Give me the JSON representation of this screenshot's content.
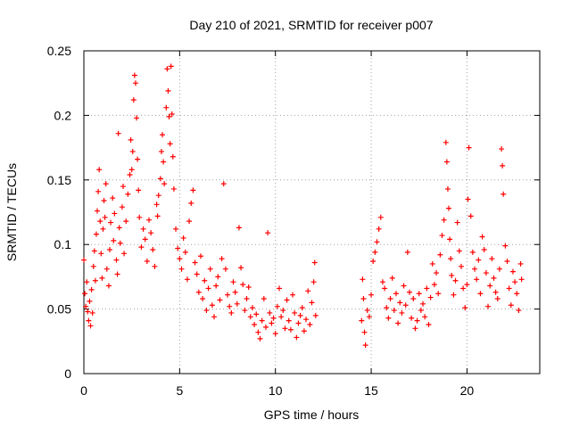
{
  "chart_data": {
    "type": "scatter",
    "title": "Day 210 of 2021, SRMTID for receiver p007",
    "xlabel": "GPS time / hours",
    "ylabel": "SRMTID / TECUs",
    "xlim": [
      0,
      23.8
    ],
    "ylim": [
      0,
      0.25
    ],
    "x_ticks": [
      0,
      5,
      10,
      15,
      20
    ],
    "x_tick_labels": [
      "0",
      "5",
      "10",
      "15",
      "20"
    ],
    "y_ticks": [
      0,
      0.05,
      0.1,
      0.15,
      0.2,
      0.25
    ],
    "y_tick_labels": [
      "0",
      "0.05",
      "0.1",
      "0.15",
      "0.2",
      "0.25"
    ],
    "grid": true,
    "marker": "plus",
    "color": "#ff0000",
    "series": [
      {
        "name": "SRMTID",
        "points": [
          [
            0.0,
            0.088
          ],
          [
            0.05,
            0.062
          ],
          [
            0.1,
            0.052
          ],
          [
            0.15,
            0.071
          ],
          [
            0.2,
            0.048
          ],
          [
            0.25,
            0.041
          ],
          [
            0.3,
            0.056
          ],
          [
            0.35,
            0.037
          ],
          [
            0.4,
            0.065
          ],
          [
            0.45,
            0.047
          ],
          [
            0.5,
            0.083
          ],
          [
            0.55,
            0.095
          ],
          [
            0.6,
            0.072
          ],
          [
            0.65,
            0.108
          ],
          [
            0.7,
            0.126
          ],
          [
            0.75,
            0.141
          ],
          [
            0.8,
            0.158
          ],
          [
            0.85,
            0.118
          ],
          [
            0.9,
            0.093
          ],
          [
            0.95,
            0.074
          ],
          [
            1.0,
            0.112
          ],
          [
            1.05,
            0.134
          ],
          [
            1.1,
            0.121
          ],
          [
            1.15,
            0.147
          ],
          [
            1.2,
            0.081
          ],
          [
            1.3,
            0.068
          ],
          [
            1.35,
            0.096
          ],
          [
            1.4,
            0.117
          ],
          [
            1.5,
            0.136
          ],
          [
            1.55,
            0.103
          ],
          [
            1.6,
            0.124
          ],
          [
            1.7,
            0.088
          ],
          [
            1.75,
            0.077
          ],
          [
            1.8,
            0.186
          ],
          [
            1.85,
            0.113
          ],
          [
            1.9,
            0.101
          ],
          [
            2.0,
            0.129
          ],
          [
            2.05,
            0.145
          ],
          [
            2.1,
            0.093
          ],
          [
            2.2,
            0.118
          ],
          [
            2.3,
            0.139
          ],
          [
            2.4,
            0.154
          ],
          [
            2.45,
            0.181
          ],
          [
            2.5,
            0.158
          ],
          [
            2.55,
            0.172
          ],
          [
            2.6,
            0.212
          ],
          [
            2.65,
            0.231
          ],
          [
            2.7,
            0.225
          ],
          [
            2.75,
            0.198
          ],
          [
            2.8,
            0.166
          ],
          [
            2.85,
            0.142
          ],
          [
            2.9,
            0.121
          ],
          [
            3.0,
            0.098
          ],
          [
            3.1,
            0.112
          ],
          [
            3.2,
            0.104
          ],
          [
            3.3,
            0.087
          ],
          [
            3.4,
            0.119
          ],
          [
            3.5,
            0.109
          ],
          [
            3.6,
            0.096
          ],
          [
            3.7,
            0.083
          ],
          [
            3.8,
            0.131
          ],
          [
            3.85,
            0.122
          ],
          [
            3.9,
            0.138
          ],
          [
            4.0,
            0.151
          ],
          [
            4.05,
            0.172
          ],
          [
            4.1,
            0.185
          ],
          [
            4.15,
            0.164
          ],
          [
            4.2,
            0.147
          ],
          [
            4.3,
            0.206
          ],
          [
            4.35,
            0.236
          ],
          [
            4.4,
            0.219
          ],
          [
            4.45,
            0.199
          ],
          [
            4.5,
            0.178
          ],
          [
            4.55,
            0.238
          ],
          [
            4.6,
            0.201
          ],
          [
            4.65,
            0.168
          ],
          [
            4.7,
            0.143
          ],
          [
            4.8,
            0.112
          ],
          [
            4.9,
            0.097
          ],
          [
            5.0,
            0.089
          ],
          [
            5.1,
            0.081
          ],
          [
            5.2,
            0.105
          ],
          [
            5.3,
            0.094
          ],
          [
            5.4,
            0.073
          ],
          [
            5.5,
            0.118
          ],
          [
            5.6,
            0.132
          ],
          [
            5.7,
            0.142
          ],
          [
            5.8,
            0.086
          ],
          [
            5.9,
            0.077
          ],
          [
            6.0,
            0.063
          ],
          [
            6.1,
            0.091
          ],
          [
            6.2,
            0.058
          ],
          [
            6.3,
            0.072
          ],
          [
            6.4,
            0.049
          ],
          [
            6.5,
            0.066
          ],
          [
            6.6,
            0.081
          ],
          [
            6.7,
            0.053
          ],
          [
            6.8,
            0.044
          ],
          [
            6.9,
            0.068
          ],
          [
            7.0,
            0.075
          ],
          [
            7.1,
            0.057
          ],
          [
            7.2,
            0.089
          ],
          [
            7.3,
            0.147
          ],
          [
            7.4,
            0.081
          ],
          [
            7.5,
            0.061
          ],
          [
            7.6,
            0.052
          ],
          [
            7.7,
            0.047
          ],
          [
            7.8,
            0.071
          ],
          [
            7.9,
            0.063
          ],
          [
            8.0,
            0.054
          ],
          [
            8.1,
            0.113
          ],
          [
            8.2,
            0.082
          ],
          [
            8.3,
            0.069
          ],
          [
            8.4,
            0.049
          ],
          [
            8.5,
            0.058
          ],
          [
            8.6,
            0.067
          ],
          [
            8.7,
            0.044
          ],
          [
            8.8,
            0.051
          ],
          [
            8.9,
            0.038
          ],
          [
            9.0,
            0.046
          ],
          [
            9.1,
            0.032
          ],
          [
            9.2,
            0.027
          ],
          [
            9.3,
            0.041
          ],
          [
            9.4,
            0.058
          ],
          [
            9.5,
            0.036
          ],
          [
            9.6,
            0.109
          ],
          [
            9.7,
            0.047
          ],
          [
            9.8,
            0.039
          ],
          [
            9.9,
            0.043
          ],
          [
            10.0,
            0.031
          ],
          [
            10.1,
            0.052
          ],
          [
            10.2,
            0.066
          ],
          [
            10.3,
            0.044
          ],
          [
            10.4,
            0.049
          ],
          [
            10.5,
            0.035
          ],
          [
            10.6,
            0.057
          ],
          [
            10.7,
            0.041
          ],
          [
            10.8,
            0.034
          ],
          [
            10.9,
            0.061
          ],
          [
            11.0,
            0.047
          ],
          [
            11.1,
            0.028
          ],
          [
            11.2,
            0.039
          ],
          [
            11.3,
            0.045
          ],
          [
            11.4,
            0.051
          ],
          [
            11.5,
            0.033
          ],
          [
            11.6,
            0.042
          ],
          [
            11.7,
            0.064
          ],
          [
            11.8,
            0.038
          ],
          [
            11.9,
            0.055
          ],
          [
            12.0,
            0.071
          ],
          [
            12.05,
            0.086
          ],
          [
            12.1,
            0.045
          ],
          [
            14.5,
            0.041
          ],
          [
            14.55,
            0.073
          ],
          [
            14.6,
            0.058
          ],
          [
            14.65,
            0.032
          ],
          [
            14.7,
            0.022
          ],
          [
            14.8,
            0.049
          ],
          [
            14.9,
            0.044
          ],
          [
            15.0,
            0.061
          ],
          [
            15.1,
            0.087
          ],
          [
            15.2,
            0.094
          ],
          [
            15.3,
            0.102
          ],
          [
            15.4,
            0.112
          ],
          [
            15.5,
            0.121
          ],
          [
            15.6,
            0.071
          ],
          [
            15.7,
            0.066
          ],
          [
            15.8,
            0.051
          ],
          [
            15.9,
            0.043
          ],
          [
            16.0,
            0.058
          ],
          [
            16.1,
            0.074
          ],
          [
            16.2,
            0.049
          ],
          [
            16.3,
            0.062
          ],
          [
            16.4,
            0.039
          ],
          [
            16.5,
            0.055
          ],
          [
            16.6,
            0.047
          ],
          [
            16.7,
            0.068
          ],
          [
            16.8,
            0.053
          ],
          [
            16.9,
            0.094
          ],
          [
            17.0,
            0.063
          ],
          [
            17.1,
            0.043
          ],
          [
            17.2,
            0.058
          ],
          [
            17.3,
            0.035
          ],
          [
            17.4,
            0.041
          ],
          [
            17.5,
            0.062
          ],
          [
            17.6,
            0.049
          ],
          [
            17.7,
            0.054
          ],
          [
            17.8,
            0.044
          ],
          [
            17.9,
            0.066
          ],
          [
            18.0,
            0.038
          ],
          [
            18.1,
            0.059
          ],
          [
            18.2,
            0.085
          ],
          [
            18.3,
            0.069
          ],
          [
            18.4,
            0.078
          ],
          [
            18.5,
            0.062
          ],
          [
            18.6,
            0.092
          ],
          [
            18.7,
            0.107
          ],
          [
            18.8,
            0.119
          ],
          [
            18.9,
            0.179
          ],
          [
            18.95,
            0.164
          ],
          [
            19.0,
            0.143
          ],
          [
            19.05,
            0.128
          ],
          [
            19.1,
            0.104
          ],
          [
            19.15,
            0.089
          ],
          [
            19.2,
            0.076
          ],
          [
            19.3,
            0.061
          ],
          [
            19.4,
            0.072
          ],
          [
            19.5,
            0.117
          ],
          [
            19.6,
            0.095
          ],
          [
            19.7,
            0.083
          ],
          [
            19.8,
            0.066
          ],
          [
            19.9,
            0.051
          ],
          [
            20.0,
            0.069
          ],
          [
            20.05,
            0.135
          ],
          [
            20.1,
            0.175
          ],
          [
            20.2,
            0.122
          ],
          [
            20.3,
            0.094
          ],
          [
            20.4,
            0.081
          ],
          [
            20.5,
            0.073
          ],
          [
            20.6,
            0.088
          ],
          [
            20.7,
            0.062
          ],
          [
            20.8,
            0.106
          ],
          [
            20.9,
            0.096
          ],
          [
            21.0,
            0.078
          ],
          [
            21.1,
            0.052
          ],
          [
            21.2,
            0.068
          ],
          [
            21.3,
            0.089
          ],
          [
            21.4,
            0.074
          ],
          [
            21.5,
            0.063
          ],
          [
            21.6,
            0.058
          ],
          [
            21.7,
            0.081
          ],
          [
            21.8,
            0.174
          ],
          [
            21.85,
            0.161
          ],
          [
            21.9,
            0.139
          ],
          [
            22.0,
            0.099
          ],
          [
            22.1,
            0.087
          ],
          [
            22.2,
            0.066
          ],
          [
            22.3,
            0.053
          ],
          [
            22.4,
            0.079
          ],
          [
            22.5,
            0.071
          ],
          [
            22.6,
            0.062
          ],
          [
            22.7,
            0.049
          ],
          [
            22.8,
            0.085
          ],
          [
            22.85,
            0.073
          ]
        ]
      }
    ]
  }
}
